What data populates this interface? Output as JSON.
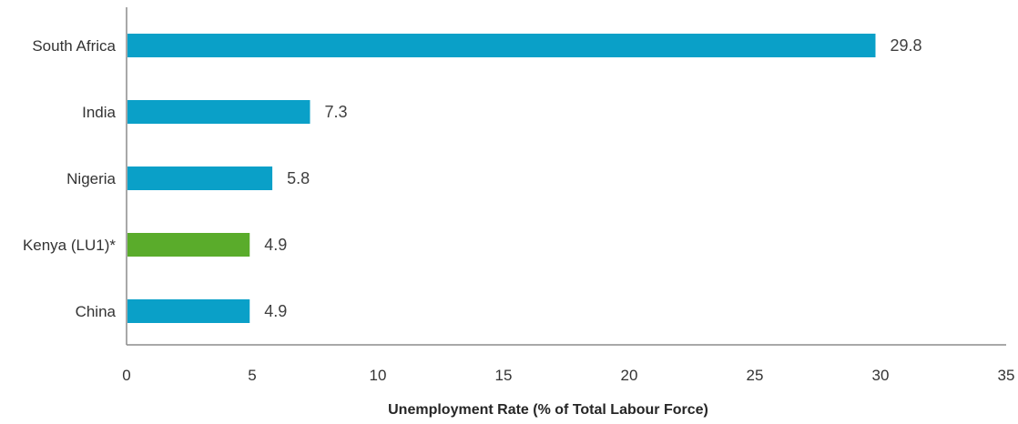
{
  "chart_data": {
    "type": "bar",
    "orientation": "horizontal",
    "categories": [
      "South Africa",
      "India",
      "Nigeria",
      "Kenya (LU1)*",
      "China"
    ],
    "values": [
      29.8,
      7.3,
      5.8,
      4.9,
      4.9
    ],
    "value_labels": [
      "29.8",
      "7.3",
      "5.8",
      "4.9",
      "4.9"
    ],
    "bar_colors": [
      "#0aa0c8",
      "#0aa0c8",
      "#0aa0c8",
      "#5aac2b",
      "#0aa0c8"
    ],
    "xlabel": "Unemployment Rate (% of Total Labour Force)",
    "ylabel": "",
    "title": "",
    "xlim": [
      0,
      35
    ],
    "x_ticks": [
      "0",
      "5",
      "10",
      "15",
      "20",
      "25",
      "30",
      "35"
    ],
    "grid": false,
    "legend": "none"
  }
}
